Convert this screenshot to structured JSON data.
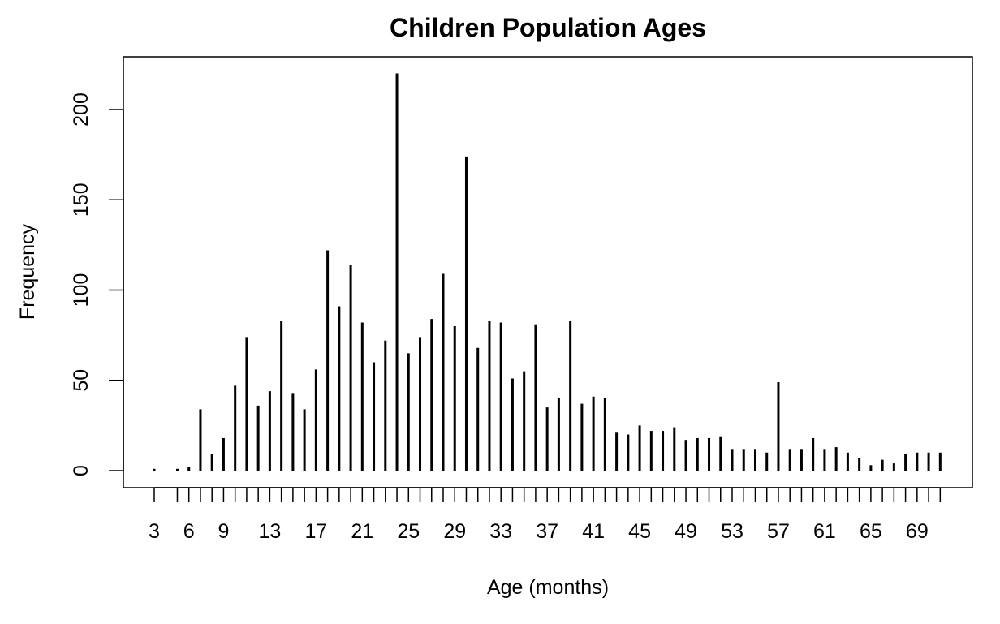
{
  "chart_data": {
    "type": "bar",
    "title": "Children Population Ages",
    "xlabel": "Age (months)",
    "ylabel": "Frequency",
    "ylim": [
      0,
      220
    ],
    "yticks": [
      0,
      50,
      100,
      150,
      200
    ],
    "x_tick_labels": [
      "3",
      "6",
      "9",
      "13",
      "17",
      "21",
      "25",
      "29",
      "33",
      "37",
      "41",
      "45",
      "49",
      "53",
      "57",
      "61",
      "65",
      "69"
    ],
    "grid": false,
    "legend": "none",
    "bar_color": "#000000",
    "x": [
      3,
      5,
      6,
      7,
      8,
      9,
      10,
      11,
      12,
      13,
      14,
      15,
      16,
      17,
      18,
      19,
      20,
      21,
      22,
      23,
      24,
      25,
      26,
      27,
      28,
      29,
      30,
      31,
      32,
      33,
      34,
      35,
      36,
      37,
      38,
      39,
      40,
      41,
      42,
      43,
      44,
      45,
      46,
      47,
      48,
      49,
      50,
      51,
      52,
      53,
      54,
      55,
      56,
      57,
      58,
      59,
      60,
      61,
      62,
      63,
      64,
      65,
      66,
      67,
      68,
      69,
      70,
      71
    ],
    "values": [
      1,
      1,
      2,
      34,
      9,
      18,
      47,
      74,
      36,
      44,
      83,
      43,
      34,
      56,
      122,
      91,
      114,
      82,
      60,
      72,
      220,
      65,
      74,
      84,
      109,
      80,
      174,
      68,
      83,
      82,
      51,
      55,
      81,
      35,
      40,
      83,
      37,
      41,
      40,
      21,
      20,
      25,
      22,
      22,
      24,
      17,
      18,
      18,
      19,
      12,
      12,
      12,
      10,
      49,
      12,
      12,
      18,
      12,
      13,
      10,
      7,
      3,
      6,
      4,
      9,
      10,
      10,
      10
    ]
  }
}
